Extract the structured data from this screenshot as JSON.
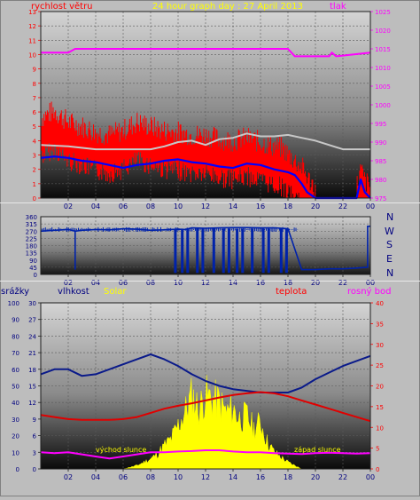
{
  "header": {
    "wind_label": "rychlost větru",
    "title": "24 hour graph day : 27 April 2013",
    "pressure_label": "tlak"
  },
  "panel2": {
    "compass": [
      "N",
      "W",
      "S",
      "E",
      "N"
    ]
  },
  "panel3": {
    "labels": {
      "rain": "srážky",
      "humidity": "vlhkost",
      "solar": "Solar",
      "temp": "teplota",
      "dew": "rosný bod"
    },
    "sunrise_label": "východ slunce",
    "sunset_label": "západ slunce"
  },
  "colors": {
    "wind": "#ff0000",
    "gust": "#c8c8c8",
    "wind_avg": "#0000ff",
    "pressure": "#ff00ff",
    "direction": "#0022aa",
    "humidity": "#0a1a8a",
    "temperature": "#e00000",
    "dew_point": "#ff00ff",
    "solar": "#ffff00",
    "label_red": "#ff0000",
    "label_yellow": "#ffff00",
    "label_magenta": "#ff00ff",
    "label_navy": "#000080"
  },
  "chart_data": [
    {
      "type": "line",
      "x_ticks": [
        "02",
        "04",
        "06",
        "08",
        "10",
        "12",
        "14",
        "16",
        "18",
        "20",
        "22",
        "00"
      ],
      "y_left_ticks": [
        "0",
        "1",
        "2",
        "3",
        "4",
        "5",
        "6",
        "7",
        "8",
        "9",
        "10",
        "11",
        "12",
        "13"
      ],
      "y_right_ticks": [
        "975",
        "980",
        "985",
        "990",
        "995",
        "1000",
        "1005",
        "1010",
        "1015",
        "1020",
        "1025"
      ],
      "ylim_left": [
        0,
        13
      ],
      "ylim_right": [
        975,
        1025
      ],
      "series": [
        {
          "name": "rychlost větru",
          "x": [
            0,
            1,
            2,
            3,
            4,
            5,
            6,
            7,
            8,
            9,
            10,
            11,
            12,
            13,
            14,
            15,
            16,
            17,
            17.5,
            18,
            18.5,
            19,
            19.5,
            20,
            21,
            22,
            23,
            23.3,
            23.6,
            24
          ],
          "y": [
            4.8,
            5.3,
            4.5,
            4.2,
            3.8,
            3.6,
            3.9,
            4.5,
            4.2,
            3.9,
            3.8,
            3.6,
            3.6,
            3.3,
            3.2,
            3.4,
            3.1,
            2.8,
            2.7,
            2.3,
            1.8,
            1.4,
            0.5,
            0,
            0,
            0,
            0,
            1.2,
            0.4,
            0
          ]
        },
        {
          "name": "gust",
          "x": [
            0,
            2,
            4,
            6,
            8,
            9,
            10,
            11,
            12,
            13,
            14,
            15,
            16,
            17,
            18,
            19,
            20,
            22,
            24
          ],
          "y": [
            3.7,
            3.6,
            3.4,
            3.4,
            3.4,
            3.6,
            3.9,
            4.0,
            3.7,
            4.1,
            4.2,
            4.5,
            4.3,
            4.3,
            4.4,
            4.2,
            4.0,
            3.4,
            3.4
          ]
        },
        {
          "name": "wind average",
          "x": [
            0,
            1,
            2,
            3,
            4,
            5,
            6,
            7,
            8,
            9,
            10,
            11,
            12,
            13,
            14,
            15,
            16,
            17,
            18,
            18.5,
            19,
            19.4,
            20,
            21,
            22,
            23,
            23.3,
            23.6,
            24
          ],
          "y": [
            2.8,
            2.9,
            2.8,
            2.6,
            2.5,
            2.3,
            2.1,
            2.3,
            2.4,
            2.6,
            2.7,
            2.5,
            2.4,
            2.2,
            2.1,
            2.4,
            2.3,
            2.0,
            1.8,
            1.6,
            1.0,
            0.4,
            0,
            0,
            0,
            0,
            1.3,
            0.4,
            0
          ]
        },
        {
          "name": "tlak",
          "axis": "right",
          "x": [
            0,
            2,
            2.5,
            10,
            12,
            18,
            18.5,
            21,
            21.2,
            21.5,
            24
          ],
          "y": [
            1014,
            1014,
            1015,
            1015,
            1015,
            1015,
            1013,
            1013,
            1014,
            1013,
            1014
          ]
        }
      ]
    },
    {
      "type": "line",
      "x_ticks": [
        "02",
        "04",
        "06",
        "08",
        "10",
        "12",
        "14",
        "16",
        "18",
        "20",
        "22",
        "00"
      ],
      "y_ticks": [
        "0",
        "45",
        "90",
        "135",
        "180",
        "225",
        "270",
        "315",
        "360"
      ],
      "ylim": [
        0,
        360
      ],
      "series": [
        {
          "name": "direction",
          "x": [
            0,
            1,
            2,
            2.5,
            2.5,
            2.5,
            3,
            4,
            5,
            6,
            7,
            8,
            9,
            10,
            10.5,
            11,
            12,
            13,
            14,
            15,
            16,
            17,
            18,
            19,
            20,
            21,
            22,
            23,
            23.8,
            23.8,
            24
          ],
          "y": [
            270,
            275,
            280,
            270,
            30,
            270,
            275,
            280,
            278,
            285,
            282,
            275,
            278,
            282,
            280,
            290,
            288,
            290,
            292,
            292,
            290,
            290,
            285,
            30,
            30,
            35,
            35,
            40,
            45,
            300,
            300
          ]
        }
      ]
    },
    {
      "type": "line",
      "x_ticks": [
        "02",
        "04",
        "06",
        "08",
        "10",
        "12",
        "14",
        "16",
        "18",
        "20",
        "22",
        "00"
      ],
      "y_left_ticks": [
        "0",
        "10",
        "20",
        "30",
        "40",
        "50",
        "60",
        "70",
        "80",
        "90",
        "100"
      ],
      "y_left2_ticks": [
        "0",
        "3",
        "6",
        "9",
        "12",
        "15",
        "18",
        "21",
        "24",
        "27",
        "30"
      ],
      "y_right_ticks": [
        "0",
        "5",
        "10",
        "15",
        "20",
        "25",
        "30",
        "35",
        "40"
      ],
      "ylim_left": [
        0,
        100
      ],
      "ylim_right": [
        0,
        40
      ],
      "series": [
        {
          "name": "vlhkost",
          "x": [
            0,
            1,
            2,
            3,
            4,
            5,
            6,
            7,
            8,
            9,
            10,
            11,
            12,
            13,
            14,
            15,
            16,
            17,
            18,
            19,
            20,
            21,
            22,
            23,
            24
          ],
          "y": [
            57,
            60,
            60,
            56,
            57,
            60,
            63,
            66,
            69,
            66,
            62,
            57,
            53,
            50,
            48,
            47,
            46,
            46,
            46,
            49,
            54,
            58,
            62,
            65,
            68
          ]
        },
        {
          "name": "teplota",
          "axis": "right",
          "x": [
            0,
            1,
            2,
            3,
            4,
            5,
            6,
            7,
            8,
            9,
            10,
            11,
            12,
            13,
            14,
            15,
            16,
            17,
            18,
            19,
            20,
            21,
            22,
            23,
            24
          ],
          "y": [
            13,
            12.5,
            12,
            11.8,
            11.8,
            11.8,
            12,
            12.5,
            13.5,
            14.5,
            15.2,
            15.8,
            16.5,
            17.2,
            17.8,
            18.2,
            18.5,
            18.2,
            17.5,
            16.5,
            15.5,
            14.5,
            13.5,
            12.5,
            11.5
          ]
        },
        {
          "name": "rosný bod",
          "axis": "right",
          "x": [
            0,
            1,
            2,
            3,
            4,
            5,
            6,
            7,
            8,
            9,
            10,
            11,
            12,
            13,
            14,
            15,
            16,
            17,
            18,
            19,
            20,
            21,
            22,
            23,
            24
          ],
          "y": [
            4,
            3.8,
            4,
            3.5,
            3,
            2.5,
            3,
            3.5,
            4,
            4,
            4.2,
            4.3,
            4.5,
            4.5,
            4.2,
            4,
            4,
            3.8,
            3.7,
            3.6,
            3.8,
            3.9,
            3.8,
            3.7,
            3.8
          ]
        },
        {
          "name": "Solar",
          "axis": "right",
          "x": [
            6,
            7,
            8,
            8.5,
            9,
            9.5,
            10,
            10.5,
            11,
            11.5,
            12,
            12.5,
            13,
            13.5,
            14,
            14.5,
            15,
            15.5,
            16,
            16.5,
            17,
            18,
            19
          ],
          "y": [
            0,
            1,
            3,
            4.5,
            7,
            9,
            13,
            17,
            22,
            18,
            22,
            21,
            20,
            17,
            18,
            15,
            16,
            12,
            14,
            8,
            5,
            2,
            0
          ]
        }
      ]
    }
  ]
}
